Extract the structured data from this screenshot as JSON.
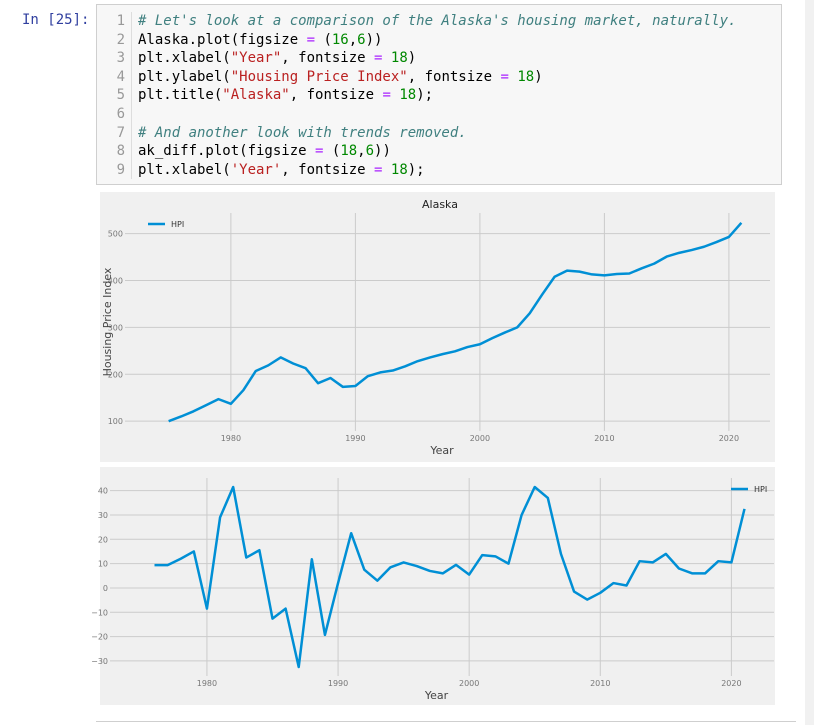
{
  "cell": {
    "prompt": "In [25]:",
    "lines": [
      {
        "number": 1,
        "text": "# Let's look at a comparison of the Alaska's housing market, naturally."
      },
      {
        "number": 2,
        "text": "Alaska.plot(figsize = (16,6))"
      },
      {
        "number": 3,
        "text": "plt.xlabel(\"Year\", fontsize = 18)"
      },
      {
        "number": 4,
        "text": "plt.ylabel(\"Housing Price Index\", fontsize = 18)"
      },
      {
        "number": 5,
        "text": "plt.title(\"Alaska\", fontsize = 18);"
      },
      {
        "number": 6
      },
      {
        "number": 7,
        "text": "# And another look with trends removed."
      },
      {
        "number": 8,
        "text": "ak_diff.plot(figsize = (18,6))"
      },
      {
        "number": 9,
        "text": "plt.xlabel('Year', fontsize = 18);"
      }
    ]
  },
  "chart_data": [
    {
      "type": "line",
      "title": "Alaska",
      "xlabel": "Year",
      "ylabel": "Housing Price Index",
      "x": [
        1975,
        1976,
        1977,
        1978,
        1979,
        1980,
        1981,
        1982,
        1983,
        1984,
        1985,
        1986,
        1987,
        1988,
        1989,
        1990,
        1991,
        1992,
        1993,
        1994,
        1995,
        1996,
        1997,
        1998,
        1999,
        2000,
        2001,
        2002,
        2003,
        2004,
        2005,
        2006,
        2007,
        2008,
        2009,
        2010,
        2011,
        2012,
        2013,
        2014,
        2015,
        2016,
        2017,
        2018,
        2019,
        2020,
        2021
      ],
      "series": [
        {
          "name": "HPI",
          "color": "#008fd5",
          "values": [
            100,
            110,
            121,
            134,
            147,
            137,
            166,
            207,
            219,
            236,
            223,
            213,
            181,
            192,
            173,
            175,
            196,
            204,
            208,
            217,
            228,
            236,
            243,
            249,
            258,
            264,
            277,
            289,
            300,
            330,
            370,
            408,
            421,
            419,
            413,
            411,
            414,
            415,
            426,
            436,
            451,
            459,
            465,
            472,
            482,
            493,
            523
          ]
        }
      ],
      "xlim": [
        1972.7,
        2023.3
      ],
      "ylim": [
        79,
        544
      ],
      "xticks": [
        1980,
        1990,
        2000,
        2010,
        2020
      ],
      "yticks": [
        100,
        200,
        300,
        400,
        500
      ],
      "grid": true,
      "legend": "upper-left"
    },
    {
      "type": "line",
      "xlabel": "Year",
      "x": [
        1976,
        1977,
        1978,
        1979,
        1980,
        1981,
        1982,
        1983,
        1984,
        1985,
        1986,
        1987,
        1988,
        1989,
        1990,
        1991,
        1992,
        1993,
        1994,
        1995,
        1996,
        1997,
        1998,
        1999,
        2000,
        2001,
        2002,
        2003,
        2004,
        2005,
        2006,
        2007,
        2008,
        2009,
        2010,
        2011,
        2012,
        2013,
        2014,
        2015,
        2016,
        2017,
        2018,
        2019,
        2020,
        2021
      ],
      "series": [
        {
          "name": "HPI",
          "color": "#008fd5",
          "values": [
            9.4,
            9.4,
            12,
            15,
            -8.5,
            29,
            41.5,
            12.5,
            15.5,
            -12.6,
            -8.5,
            -32.5,
            11.8,
            -19.3,
            2,
            22.5,
            7.5,
            3,
            8.5,
            10.5,
            9,
            7,
            6,
            9.5,
            5.5,
            13.5,
            13,
            10,
            30,
            41.5,
            37,
            14,
            -1.5,
            -4.8,
            -2,
            2,
            1,
            11,
            10.5,
            14,
            8,
            6,
            6,
            11,
            10.5,
            32.5
          ]
        }
      ],
      "xlim": [
        1973.75,
        2023.25
      ],
      "ylim": [
        -36.2,
        45.2
      ],
      "xticks": [
        1980,
        1990,
        2000,
        2010,
        2020
      ],
      "yticks": [
        {
          "value": -30,
          "label": "−30"
        },
        {
          "value": -20,
          "label": "−20"
        },
        {
          "value": -10,
          "label": "−10"
        },
        0,
        10,
        20,
        30,
        40
      ],
      "grid": true,
      "legend": "upper-right"
    }
  ]
}
